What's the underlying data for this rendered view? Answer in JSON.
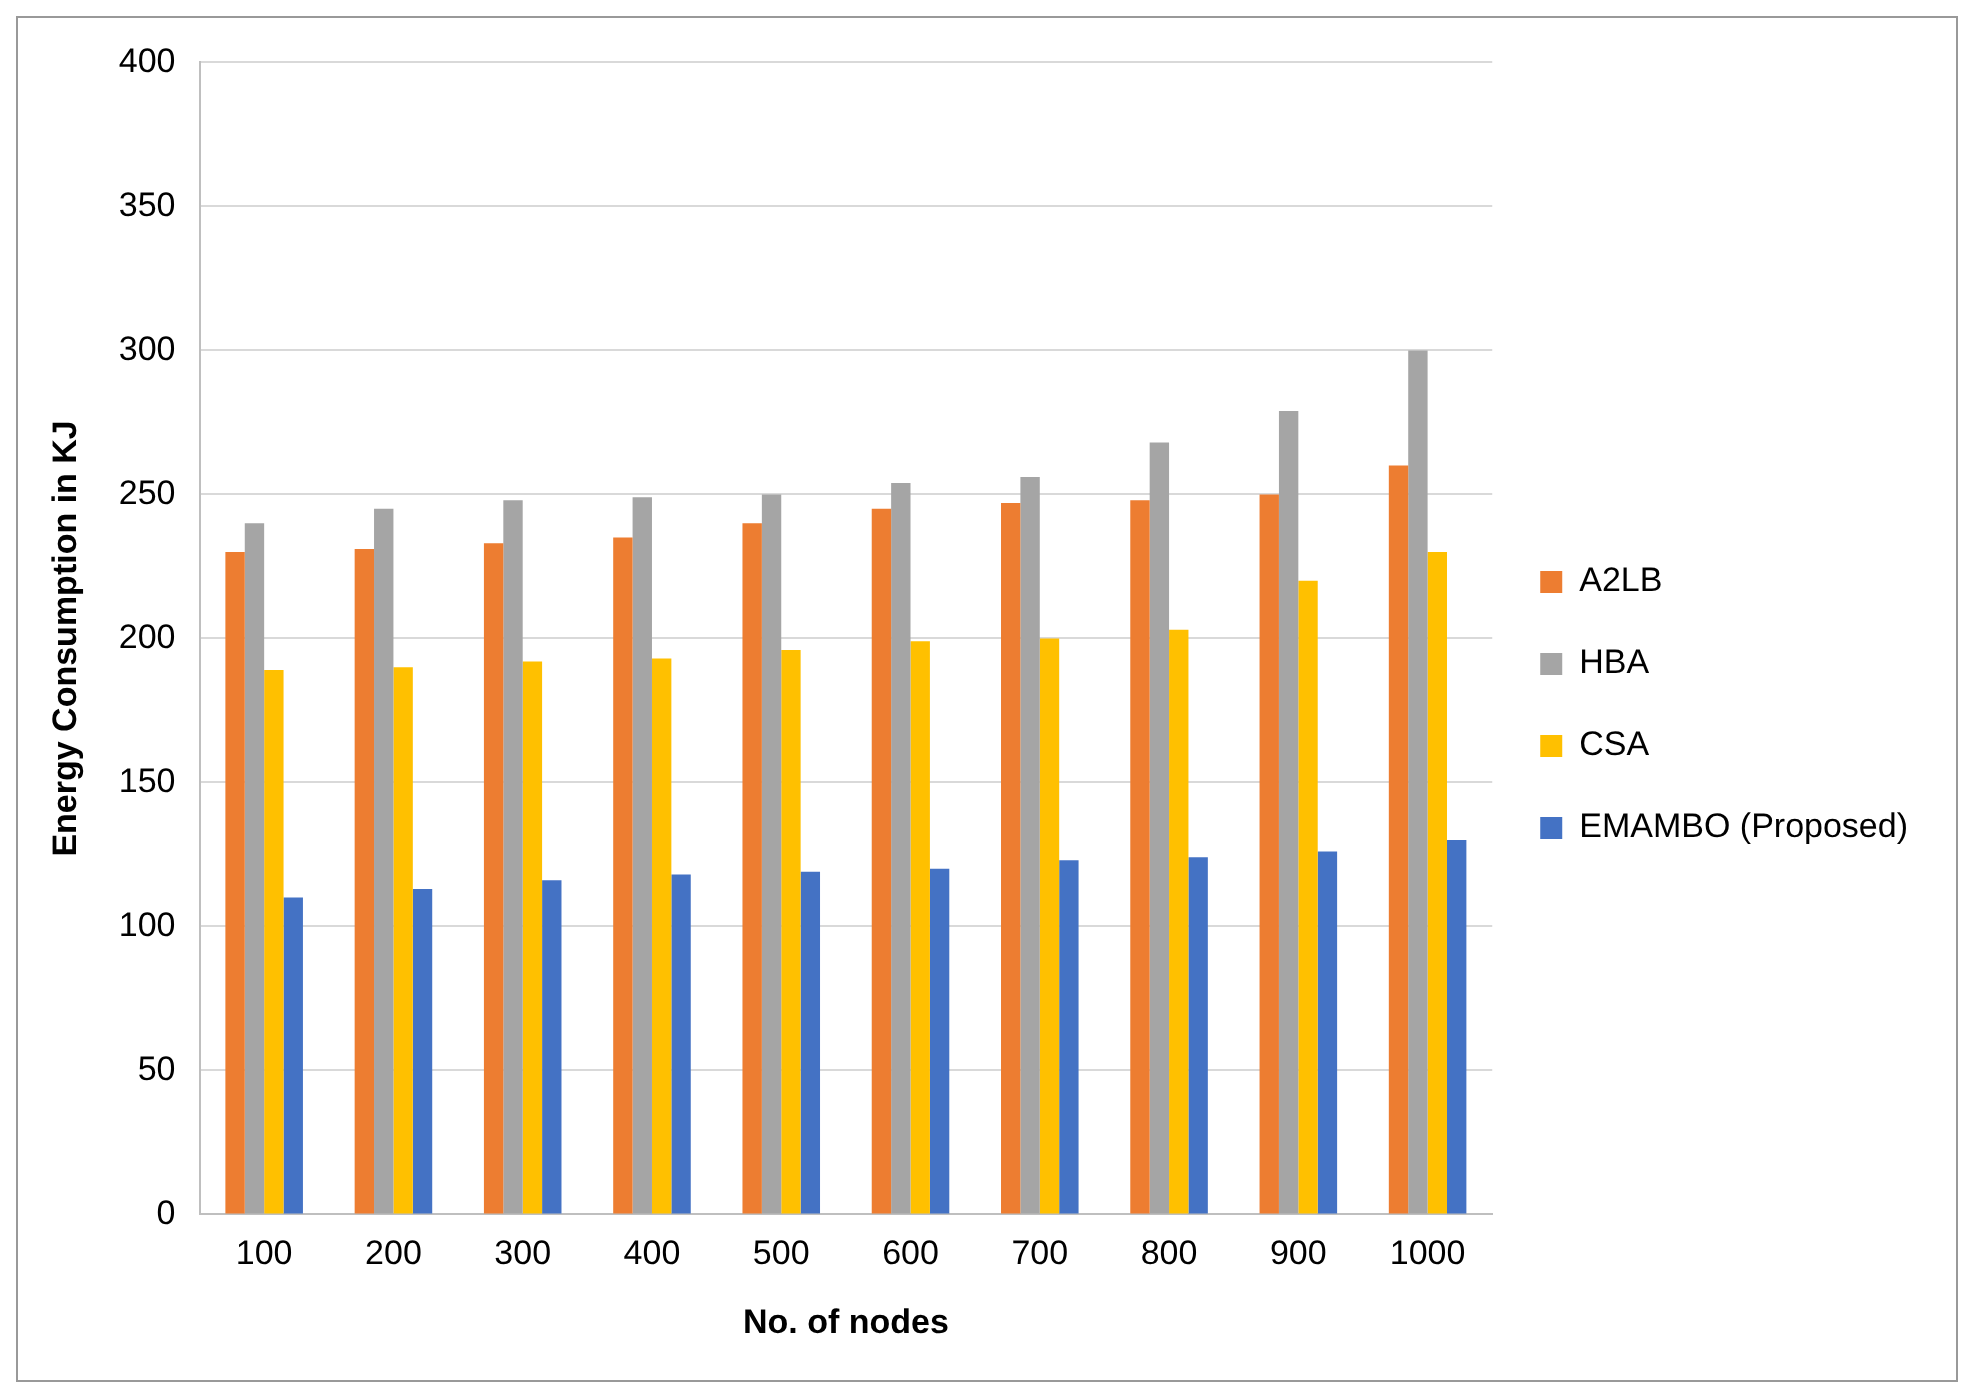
{
  "chart_data": {
    "type": "bar",
    "xlabel": "No. of nodes",
    "ylabel": "Energy Consumption in KJ",
    "categories": [
      "100",
      "200",
      "300",
      "400",
      "500",
      "600",
      "700",
      "800",
      "900",
      "1000"
    ],
    "series": [
      {
        "name": "A2LB",
        "color": "#ed7d31",
        "values": [
          230,
          231,
          233,
          235,
          240,
          245,
          247,
          248,
          250,
          260
        ]
      },
      {
        "name": "HBA",
        "color": "#a5a5a5",
        "values": [
          240,
          245,
          248,
          249,
          250,
          254,
          256,
          268,
          279,
          300
        ]
      },
      {
        "name": "CSA",
        "color": "#ffc000",
        "values": [
          189,
          190,
          192,
          193,
          196,
          199,
          200,
          203,
          220,
          230
        ]
      },
      {
        "name": "EMAMBO (Proposed)",
        "color": "#4472c4",
        "values": [
          110,
          113,
          116,
          118,
          119,
          120,
          123,
          124,
          126,
          130
        ]
      }
    ],
    "ylim": [
      0,
      400
    ],
    "yticks": [
      0,
      50,
      100,
      150,
      200,
      250,
      300,
      350,
      400
    ],
    "grid": "y",
    "legend": "right"
  }
}
